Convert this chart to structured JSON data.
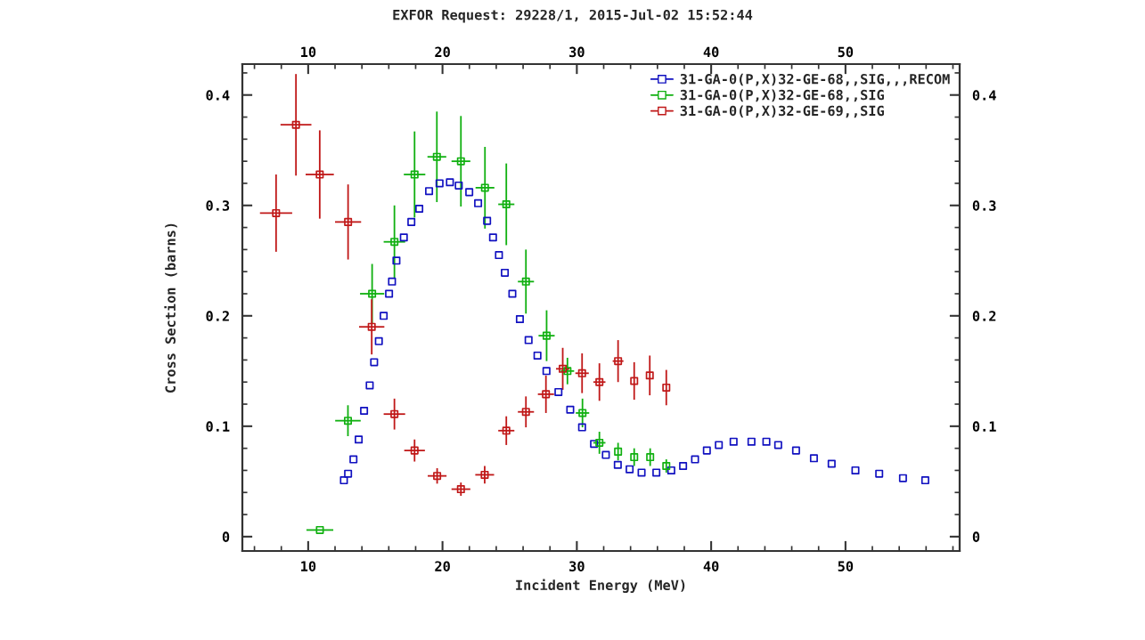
{
  "chart_data": {
    "type": "scatter",
    "title": "EXFOR Request: 29228/1, 2015-Jul-02 15:52:44",
    "xlabel": "Incident Energy (MeV)",
    "ylabel": "Cross Section (barns)",
    "xlim": [
      5.1,
      58.5
    ],
    "xticks": [
      10,
      20,
      30,
      40,
      50
    ],
    "x2lim": [
      5.1,
      58.5
    ],
    "x2ticks": [
      10,
      20,
      30,
      40,
      50
    ],
    "ylim": [
      -0.013,
      0.428
    ],
    "yticks": [
      0,
      0.1,
      0.2,
      0.3,
      0.4
    ],
    "y2lim": [
      -0.013,
      0.428
    ],
    "y2ticks": [
      0,
      0.1,
      0.2,
      0.3,
      0.4
    ],
    "marker": "square",
    "legend": "top right",
    "series": [
      {
        "name": "31-GA-0(P,X)32-GE-68,,SIG,,,RECOM",
        "color": "#1010c0",
        "x": [
          12.66,
          12.97,
          13.37,
          13.76,
          14.16,
          14.58,
          14.91,
          15.26,
          15.62,
          16.02,
          16.24,
          16.57,
          17.12,
          17.68,
          18.27,
          19.0,
          19.78,
          20.55,
          21.21,
          21.99,
          22.65,
          23.32,
          23.76,
          24.2,
          24.64,
          25.2,
          25.76,
          26.41,
          27.07,
          27.74,
          28.63,
          29.51,
          30.39,
          31.28,
          32.16,
          33.05,
          33.93,
          34.82,
          35.92,
          37.03,
          37.91,
          38.8,
          39.68,
          40.57,
          41.67,
          43.0,
          44.11,
          44.99,
          46.32,
          47.65,
          48.97,
          50.74,
          52.51,
          54.28,
          55.94
        ],
        "values": [
          0.051,
          0.057,
          0.07,
          0.088,
          0.114,
          0.137,
          0.158,
          0.177,
          0.2,
          0.22,
          0.231,
          0.25,
          0.271,
          0.285,
          0.297,
          0.313,
          0.32,
          0.321,
          0.318,
          0.312,
          0.302,
          0.286,
          0.271,
          0.255,
          0.239,
          0.22,
          0.197,
          0.178,
          0.164,
          0.15,
          0.131,
          0.115,
          0.099,
          0.084,
          0.074,
          0.065,
          0.061,
          0.058,
          0.058,
          0.06,
          0.064,
          0.07,
          0.078,
          0.083,
          0.086,
          0.086,
          0.086,
          0.083,
          0.078,
          0.071,
          0.066,
          0.06,
          0.057,
          0.053,
          0.051
        ]
      },
      {
        "name": "31-GA-0(P,X)32-GE-68,,SIG",
        "color": "#10b010",
        "x": [
          10.87,
          12.96,
          14.76,
          16.42,
          17.92,
          19.58,
          21.37,
          23.16,
          24.75,
          26.21,
          27.75,
          29.3,
          30.42,
          31.68,
          33.07,
          34.27,
          35.46,
          36.66
        ],
        "values": [
          0.006,
          0.105,
          0.22,
          0.267,
          0.328,
          0.344,
          0.34,
          0.316,
          0.301,
          0.231,
          0.182,
          0.15,
          0.112,
          0.085,
          0.077,
          0.072,
          0.072,
          0.064
        ],
        "errors": [
          null,
          0.014,
          0.027,
          0.033,
          0.039,
          0.041,
          0.041,
          0.037,
          0.037,
          0.029,
          0.023,
          0.012,
          0.013,
          0.01,
          0.008,
          0.008,
          0.008,
          0.006
        ],
        "xerrors": [
          1.0,
          0.95,
          0.9,
          0.8,
          0.8,
          0.7,
          0.7,
          0.7,
          0.6,
          0.6,
          0.6,
          0.5,
          0.5,
          0.45,
          null,
          null,
          null,
          null
        ]
      },
      {
        "name": "31-GA-0(P,X)32-GE-69,,SIG",
        "color": "#c01818",
        "x": [
          7.61,
          9.09,
          10.86,
          12.97,
          14.73,
          16.42,
          17.92,
          19.6,
          21.37,
          23.14,
          24.75,
          26.21,
          27.7,
          28.95,
          30.39,
          31.68,
          33.07,
          34.27,
          35.43,
          36.66
        ],
        "values": [
          0.293,
          0.373,
          0.328,
          0.285,
          0.19,
          0.111,
          0.078,
          0.055,
          0.043,
          0.056,
          0.096,
          0.113,
          0.129,
          0.152,
          0.148,
          0.14,
          0.159,
          0.141,
          0.146,
          0.135
        ],
        "errors": [
          0.035,
          0.046,
          0.04,
          0.034,
          0.025,
          0.014,
          0.01,
          0.007,
          0.006,
          0.008,
          0.013,
          0.014,
          0.017,
          0.019,
          0.018,
          0.017,
          0.019,
          0.017,
          0.018,
          0.016
        ],
        "xerrors": [
          1.2,
          1.15,
          1.05,
          0.97,
          0.94,
          0.8,
          0.77,
          0.7,
          0.7,
          0.7,
          0.6,
          0.6,
          0.6,
          0.5,
          0.5,
          0.45,
          0.4,
          null,
          null,
          null
        ]
      }
    ]
  }
}
